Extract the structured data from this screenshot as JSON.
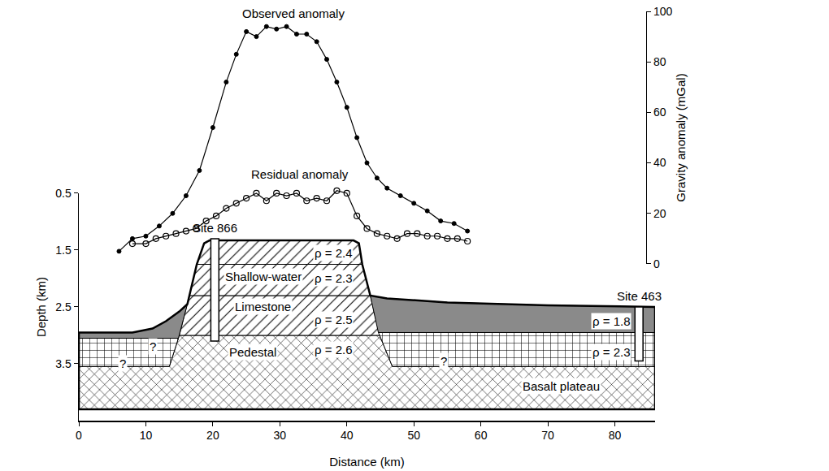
{
  "chart_data": {
    "type": "line",
    "x_label": "Distance (km)",
    "y_label": "Depth (km)",
    "y2_label": "Gravity anomaly (mGal)",
    "xlim": [
      0,
      86
    ],
    "xticks": [
      0,
      10,
      20,
      30,
      40,
      50,
      60,
      70,
      80
    ],
    "ylim": [
      4.5,
      0.5
    ],
    "yticks": [
      0.5,
      1.5,
      2.5,
      3.5
    ],
    "y2lim": [
      0,
      100
    ],
    "y2ticks": [
      0,
      20,
      40,
      60,
      80,
      100
    ],
    "grid": false,
    "series": [
      {
        "name": "Observed anomaly",
        "axis": "y2",
        "color": "#000000",
        "marker": "filled",
        "x": [
          6,
          8,
          10,
          12,
          14,
          16,
          18,
          20,
          22,
          23.5,
          25,
          26.5,
          28,
          29.5,
          31,
          32.5,
          34,
          35.5,
          37,
          38.5,
          40,
          41.5,
          43,
          44.5,
          46,
          48,
          50,
          52,
          54,
          56,
          58
        ],
        "values": [
          5,
          10,
          11,
          15,
          20,
          27,
          37,
          54,
          72,
          83,
          92,
          90,
          94,
          93,
          94,
          91,
          91,
          88,
          81,
          72,
          62,
          50,
          40,
          34,
          30,
          27,
          24,
          21,
          17,
          16,
          13
        ]
      },
      {
        "name": "Residual anomaly",
        "axis": "y2",
        "color": "#000000",
        "marker": "open",
        "x": [
          8,
          10,
          11.5,
          13,
          14.5,
          16,
          17.5,
          19,
          20.5,
          22,
          23.5,
          25,
          26.5,
          28,
          29.5,
          31,
          32.5,
          34,
          35.5,
          37,
          38.5,
          40,
          41.5,
          43,
          44.5,
          46,
          47.5,
          49,
          50.5,
          52,
          53.5,
          55,
          56.5,
          58
        ],
        "values": [
          8,
          8,
          10,
          11,
          12,
          13,
          14,
          17,
          19,
          22,
          24,
          26,
          28,
          25,
          28,
          27,
          28,
          25,
          26,
          25,
          29,
          28,
          19,
          14,
          12,
          11,
          10,
          12,
          12,
          11,
          11,
          10,
          10,
          9
        ]
      }
    ],
    "layers": [
      {
        "marker": "cross",
        "color": "#ffffff",
        "x": [
          0,
          0,
          13.5,
          15.0,
          44.9,
          46.8,
          86,
          86,
          0
        ],
        "y": [
          4.3,
          3.55,
          3.55,
          3.0,
          3.0,
          3.55,
          3.55,
          4.3,
          4.3
        ]
      },
      {
        "marker": "hatch",
        "color": "#ffffff",
        "x": [
          15.0,
          16.5,
          43.5,
          44.9,
          15.0
        ],
        "y": [
          3.0,
          2.3,
          2.3,
          3.0,
          3.0
        ]
      },
      {
        "marker": "hatch",
        "color": "#ffffff",
        "x": [
          16.5,
          17.6,
          42.3,
          43.5,
          16.5
        ],
        "y": [
          2.3,
          1.75,
          1.75,
          2.3,
          2.3
        ]
      },
      {
        "marker": "hatch",
        "color": "#ffffff",
        "x": [
          17.6,
          18.7,
          19.5,
          41,
          41.8,
          42.3,
          17.6
        ],
        "y": [
          1.75,
          1.38,
          1.33,
          1.33,
          1.38,
          1.75,
          1.75
        ]
      },
      {
        "marker": "brick",
        "color": "#ffffff",
        "x": [
          0,
          14.86,
          13.5,
          0,
          0
        ],
        "y": [
          3.05,
          3.05,
          3.55,
          3.55,
          3.05
        ]
      },
      {
        "marker": "solid",
        "color": "#8a8a8a",
        "x": [
          0,
          8,
          11,
          13,
          15,
          16.2,
          15.75,
          15.0,
          14.86,
          0,
          0
        ],
        "y": [
          2.95,
          2.95,
          2.88,
          2.75,
          2.58,
          2.45,
          2.65,
          3.0,
          3.05,
          3.05,
          2.95
        ]
      },
      {
        "marker": "solid",
        "color": "#8a8a8a",
        "x": [
          43.5,
          46,
          55,
          70,
          86,
          86,
          44.7,
          43.5
        ],
        "y": [
          2.3,
          2.35,
          2.42,
          2.47,
          2.5,
          2.95,
          2.95,
          2.3
        ]
      },
      {
        "marker": "brick",
        "color": "#ffffff",
        "x": [
          44.7,
          86,
          86,
          46.8,
          44.9,
          44.7
        ],
        "y": [
          2.95,
          2.95,
          3.55,
          3.55,
          3.0,
          2.95
        ]
      }
    ],
    "outline": {
      "x": [
        0,
        8,
        11,
        13,
        15,
        16.2,
        16.5,
        17.6,
        18.7,
        19.5,
        41,
        41.8,
        42.3,
        43.5,
        46,
        55,
        70,
        86,
        86,
        0,
        0
      ],
      "y": [
        2.95,
        2.95,
        2.88,
        2.75,
        2.58,
        2.45,
        2.3,
        1.75,
        1.38,
        1.33,
        1.33,
        1.38,
        1.75,
        2.3,
        2.35,
        2.42,
        2.47,
        2.5,
        4.3,
        4.3,
        2.95
      ]
    },
    "sites": [
      {
        "label": "Site 866",
        "x": 20.3,
        "top": 1.3,
        "bottom": 3.1
      },
      {
        "label": "Site 463",
        "x": 83.6,
        "top": 2.5,
        "bottom": 3.45
      }
    ],
    "labels": [
      {
        "text": "ρ = 2.4",
        "x": 38,
        "y": 1.55
      },
      {
        "text": "Shallow-water",
        "x": 27.5,
        "y": 1.97
      },
      {
        "text": "ρ = 2.3",
        "x": 38,
        "y": 2.0
      },
      {
        "text": "Limestone",
        "x": 27.5,
        "y": 2.5
      },
      {
        "text": "ρ = 2.5",
        "x": 38,
        "y": 2.72
      },
      {
        "text": "Pedestal",
        "x": 26,
        "y": 3.3
      },
      {
        "text": "ρ = 2.6",
        "x": 38,
        "y": 3.25
      },
      {
        "text": "ρ = 1.8",
        "x": 79.5,
        "y": 2.75
      },
      {
        "text": "ρ = 2.3",
        "x": 79.5,
        "y": 3.3
      },
      {
        "text": "Basalt plateau",
        "x": 72,
        "y": 3.9
      },
      {
        "text": "?",
        "x": 11,
        "y": 3.2
      },
      {
        "text": "?",
        "x": 6.5,
        "y": 3.5
      },
      {
        "text": "?",
        "x": 54.5,
        "y": 3.45
      }
    ]
  }
}
